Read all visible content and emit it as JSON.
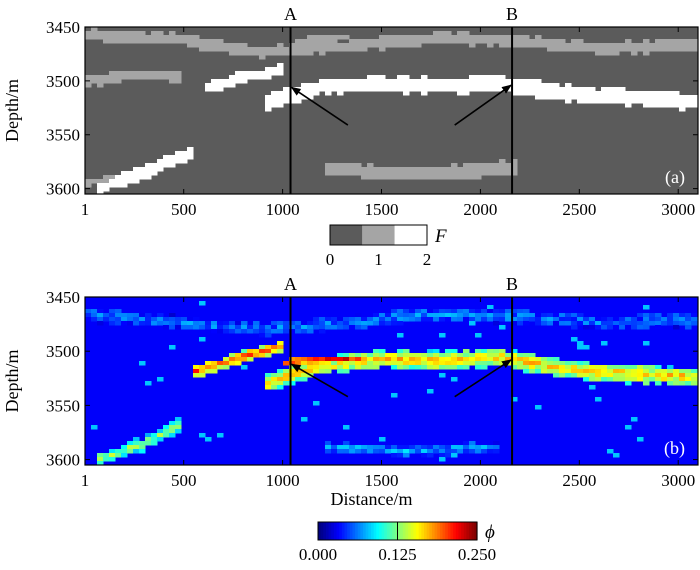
{
  "chart_data": [
    {
      "panel": "(a)",
      "type": "heatmap",
      "ylabel": "Depth/m",
      "xlabel": "",
      "xlim": [
        1,
        3100
      ],
      "ylim": [
        3450,
        3605
      ],
      "x_ticks": [
        "1",
        "500",
        "1000",
        "1500",
        "2000",
        "2500",
        "3000"
      ],
      "x_tick_values": [
        1,
        500,
        1000,
        1500,
        2000,
        2500,
        3000
      ],
      "y_ticks": [
        "3450",
        "3500",
        "3550",
        "3600"
      ],
      "y_tick_values": [
        3450,
        3500,
        3550,
        3600
      ],
      "wells": [
        {
          "name": "A",
          "x": 1040
        },
        {
          "name": "B",
          "x": 2160
        }
      ],
      "arrows": [
        {
          "from": [
            1330,
            3541
          ],
          "to": [
            1045,
            3506
          ]
        },
        {
          "from": [
            1870,
            3541
          ],
          "to": [
            2155,
            3504
          ]
        }
      ],
      "colorbar": {
        "symbol": "F",
        "tick_labels": [
          "0",
          "1",
          "2"
        ],
        "classes": [
          {
            "value": 0,
            "color": "#5b5b5b"
          },
          {
            "value": 1,
            "color": "#a5a5a5"
          },
          {
            "value": 2,
            "color": "#ffffff"
          }
        ]
      },
      "class_bands": [
        {
          "value": 1,
          "points": [
            [
              1,
              3457
            ],
            [
              500,
              3462
            ],
            [
              900,
              3474
            ],
            [
              1300,
              3468
            ],
            [
              1800,
              3460
            ],
            [
              2200,
              3463
            ],
            [
              2600,
              3470
            ],
            [
              3100,
              3466
            ]
          ],
          "thickness": 10
        },
        {
          "value": 2,
          "points": [
            [
              600,
              3507
            ],
            [
              800,
              3497
            ],
            [
              1000,
              3490
            ]
          ],
          "thickness": 10
        },
        {
          "value": 2,
          "points": [
            [
              900,
              3521
            ],
            [
              1200,
              3505
            ],
            [
              1500,
              3503
            ],
            [
              1800,
              3505
            ],
            [
              2100,
              3502
            ],
            [
              2500,
              3513
            ],
            [
              3100,
              3519
            ]
          ],
          "thickness": 14
        },
        {
          "value": 1,
          "points": [
            [
              1,
              3500
            ],
            [
              300,
              3494
            ],
            [
              500,
              3498
            ]
          ],
          "thickness": 9
        },
        {
          "value": 2,
          "points": [
            [
              60,
              3600
            ],
            [
              300,
              3584
            ],
            [
              550,
              3566
            ]
          ],
          "thickness": 11
        },
        {
          "value": 1,
          "points": [
            [
              1200,
              3580
            ],
            [
              1500,
              3586
            ],
            [
              1800,
              3585
            ],
            [
              2200,
              3580
            ]
          ],
          "thickness": 12
        },
        {
          "value": 1,
          "points": [
            [
              1,
              3595
            ],
            [
              150,
              3589
            ]
          ],
          "thickness": 6
        },
        {
          "value": 1,
          "points": [
            [
              1050,
              3464
            ],
            [
              1350,
              3458
            ]
          ],
          "thickness": 6
        }
      ]
    },
    {
      "panel": "(b)",
      "type": "heatmap",
      "ylabel": "Depth/m",
      "xlabel": "Distance/m",
      "xlim": [
        1,
        3100
      ],
      "ylim": [
        3450,
        3605
      ],
      "x_ticks": [
        "1",
        "500",
        "1000",
        "1500",
        "2000",
        "2500",
        "3000"
      ],
      "x_tick_values": [
        1,
        500,
        1000,
        1500,
        2000,
        2500,
        3000
      ],
      "y_ticks": [
        "3450",
        "3500",
        "3550",
        "3600"
      ],
      "y_tick_values": [
        3450,
        3500,
        3550,
        3600
      ],
      "wells": [
        {
          "name": "A",
          "x": 1040
        },
        {
          "name": "B",
          "x": 2160
        }
      ],
      "arrows": [
        {
          "from": [
            1330,
            3542
          ],
          "to": [
            1045,
            3512
          ]
        },
        {
          "from": [
            1870,
            3542
          ],
          "to": [
            2155,
            3508
          ]
        }
      ],
      "colorbar": {
        "symbol": "ϕ",
        "range": [
          0,
          0.25
        ],
        "tick_labels": [
          "0.000",
          "0.125",
          "0.250"
        ],
        "colormap": "jet"
      },
      "porosity_bands": [
        {
          "points": [
            [
              1,
              3467
            ],
            [
              400,
              3472
            ],
            [
              900,
              3480
            ],
            [
              1300,
              3474
            ],
            [
              1700,
              3466
            ],
            [
              2200,
              3468
            ],
            [
              2600,
              3474
            ],
            [
              3100,
              3471
            ]
          ],
          "thickness": 11,
          "value": 0.06
        },
        {
          "points": [
            [
              550,
              3519
            ],
            [
              800,
              3505
            ],
            [
              1000,
              3495
            ]
          ],
          "thickness": 10,
          "value": 0.2
        },
        {
          "points": [
            [
              900,
              3531
            ],
            [
              1200,
              3512
            ],
            [
              1500,
              3507
            ],
            [
              1800,
              3509
            ],
            [
              2100,
              3506
            ],
            [
              2500,
              3518
            ],
            [
              3100,
              3524
            ]
          ],
          "thickness": 16,
          "value": 0.17
        },
        {
          "points": [
            [
              1000,
              3510
            ],
            [
              1400,
              3506
            ]
          ],
          "thickness": 6,
          "value": 0.23
        },
        {
          "points": [
            [
              60,
              3600
            ],
            [
              300,
              3585
            ],
            [
              500,
              3566
            ]
          ],
          "thickness": 11,
          "value": 0.13
        },
        {
          "points": [
            [
              1200,
              3588
            ],
            [
              1600,
              3592
            ],
            [
              2100,
              3589
            ]
          ],
          "thickness": 9,
          "value": 0.07
        }
      ]
    }
  ]
}
